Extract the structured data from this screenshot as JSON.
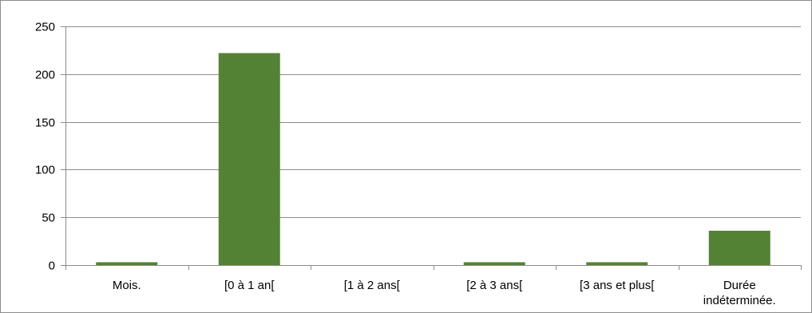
{
  "chart_data": {
    "type": "bar",
    "categories": [
      "Mois.",
      "[0 à 1 an[",
      "[1 à 2 ans[",
      "[2 à 3 ans[",
      "[3 ans et plus[",
      "Durée indéterminée."
    ],
    "category_lines": [
      [
        "Mois."
      ],
      [
        "[0 à 1 an["
      ],
      [
        "[1 à 2 ans["
      ],
      [
        "[2 à 3 ans["
      ],
      [
        "[3 ans et plus["
      ],
      [
        "Durée",
        "indéterminée."
      ]
    ],
    "values": [
      3,
      222,
      0,
      3,
      3,
      36
    ],
    "ylim": [
      0,
      250
    ],
    "yticks": [
      0,
      50,
      100,
      150,
      200,
      250
    ],
    "title": "",
    "xlabel": "",
    "ylabel": "",
    "grid": true,
    "legend": "none",
    "colors": {
      "bar": "#548235",
      "grid": "#8c8c8c",
      "axis": "#8c8c8c"
    }
  }
}
